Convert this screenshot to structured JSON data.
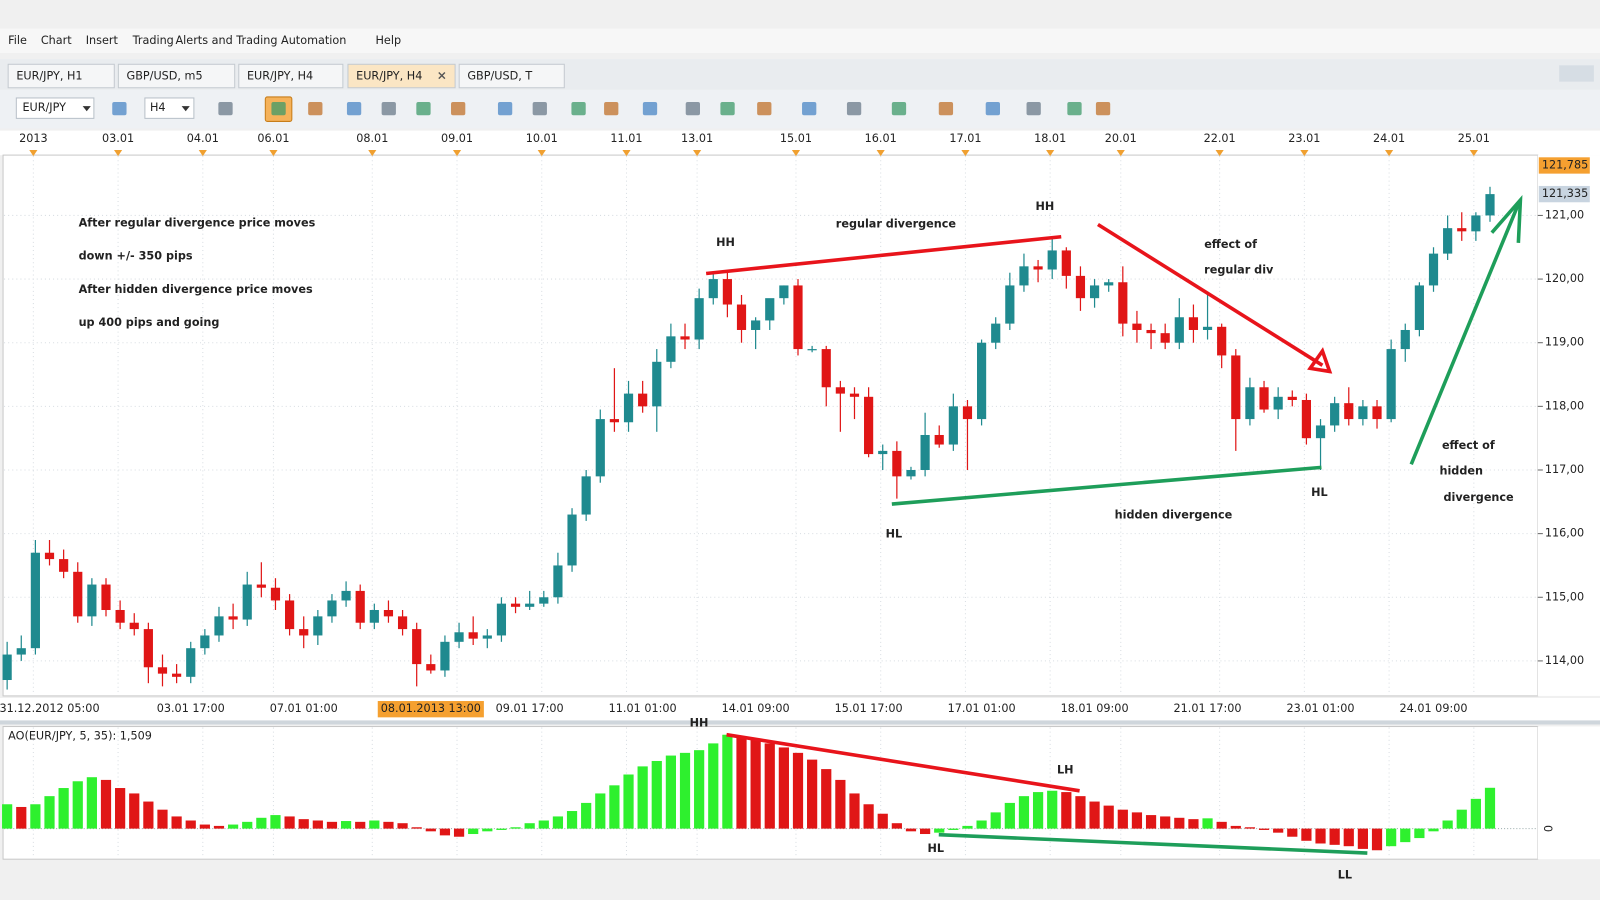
{
  "menu": [
    "File",
    "Chart",
    "Insert",
    "Trading",
    "Alerts and Trading Automation",
    "Help"
  ],
  "tabs": [
    "EUR/JPY, H1",
    "GBP/USD, m5",
    "EUR/JPY, H4",
    "EUR/JPY, H4",
    "GBP/USD, T"
  ],
  "toolbar": {
    "symbol": "EUR/JPY",
    "timeframe": "H4"
  },
  "chart_data": {
    "type": "candlestick",
    "date_ruler": [
      "2013",
      "03.01",
      "04.01",
      "06.01",
      "08.01",
      "09.01",
      "10.01",
      "11.01",
      "13.01",
      "15.01",
      "16.01",
      "17.01",
      "18.01",
      "20.01",
      "22.01",
      "23.01",
      "24.01",
      "25.01"
    ],
    "categories": [
      null,
      null,
      null,
      "31.12.2012 05:00",
      null,
      null,
      null,
      null,
      null,
      null,
      null,
      null,
      null,
      "03.01 17:00",
      null,
      null,
      null,
      null,
      null,
      null,
      null,
      "07.01 01:00",
      null,
      null,
      null,
      null,
      null,
      null,
      null,
      null,
      "08.01.2013 13:00",
      null,
      null,
      null,
      null,
      null,
      null,
      "09.01 17:00",
      null,
      null,
      null,
      null,
      null,
      null,
      null,
      "11.01 01:00",
      null,
      null,
      null,
      null,
      null,
      null,
      null,
      "14.01 09:00",
      null,
      null,
      null,
      null,
      null,
      null,
      null,
      "15.01 17:00",
      null,
      null,
      null,
      null,
      null,
      null,
      null,
      "17.01 01:00",
      null,
      null,
      null,
      null,
      null,
      null,
      null,
      "18.01 09:00",
      null,
      null,
      null,
      null,
      null,
      null,
      null,
      "21.01 17:00",
      null,
      null,
      null,
      null,
      null,
      null,
      null,
      "23.01 01:00",
      null,
      null,
      null,
      null,
      null,
      null,
      null,
      "24.01 09:00",
      null,
      null,
      null,
      null
    ],
    "candles": {
      "open": [
        113.7,
        114.1,
        114.2,
        115.7,
        115.6,
        115.4,
        114.7,
        115.2,
        114.8,
        114.6,
        114.5,
        113.9,
        113.8,
        113.75,
        114.2,
        114.4,
        114.7,
        114.65,
        115.2,
        115.15,
        114.95,
        114.5,
        114.4,
        114.7,
        114.95,
        115.1,
        114.6,
        114.8,
        114.7,
        114.5,
        113.95,
        113.85,
        114.3,
        114.45,
        114.35,
        114.4,
        114.9,
        114.85,
        114.9,
        115.0,
        115.5,
        116.3,
        116.9,
        117.8,
        117.75,
        118.2,
        118.0,
        118.7,
        119.1,
        119.05,
        119.7,
        120.0,
        119.6,
        119.2,
        119.35,
        119.7,
        119.9,
        118.9,
        118.9,
        118.3,
        118.2,
        118.15,
        117.25,
        117.3,
        116.9,
        117.0,
        117.55,
        117.4,
        118.0,
        117.8,
        119.0,
        119.3,
        119.9,
        120.2,
        120.15,
        120.45,
        120.05,
        119.7,
        119.9,
        119.95,
        119.3,
        119.2,
        119.15,
        119.0,
        119.4,
        119.2,
        119.25,
        118.8,
        117.8,
        118.3,
        117.95,
        118.15,
        118.1,
        117.5,
        117.7,
        118.05,
        117.8,
        118.0,
        117.8,
        118.9,
        119.2,
        119.9,
        120.4,
        120.8,
        120.75,
        121.0
      ],
      "high": [
        114.3,
        114.4,
        115.9,
        115.9,
        115.75,
        115.55,
        115.3,
        115.3,
        114.95,
        114.75,
        114.6,
        114.1,
        113.95,
        114.3,
        114.5,
        114.85,
        114.9,
        115.4,
        115.55,
        115.3,
        115.05,
        114.7,
        114.8,
        115.05,
        115.25,
        115.2,
        114.9,
        114.95,
        114.8,
        114.6,
        114.1,
        114.4,
        114.6,
        114.7,
        114.5,
        115.0,
        115.0,
        115.1,
        115.1,
        115.7,
        116.4,
        117.0,
        117.95,
        118.6,
        118.4,
        118.4,
        118.9,
        119.3,
        119.3,
        119.85,
        120.1,
        120.1,
        119.75,
        119.4,
        119.6,
        119.9,
        120.0,
        118.95,
        118.95,
        118.4,
        118.3,
        118.3,
        117.4,
        117.45,
        117.05,
        117.9,
        117.7,
        118.2,
        118.1,
        119.05,
        119.4,
        120.1,
        120.4,
        120.3,
        120.65,
        120.5,
        120.2,
        120.0,
        120.0,
        120.2,
        119.5,
        119.3,
        119.3,
        119.7,
        119.6,
        119.8,
        119.3,
        118.9,
        118.45,
        118.4,
        118.3,
        118.25,
        118.2,
        117.8,
        118.15,
        118.3,
        118.1,
        118.1,
        119.05,
        119.3,
        119.95,
        120.5,
        121.0,
        121.05,
        121.05,
        121.45
      ],
      "low": [
        113.55,
        114.0,
        114.1,
        115.5,
        115.3,
        114.6,
        114.55,
        114.7,
        114.5,
        114.4,
        113.65,
        113.6,
        113.65,
        113.65,
        114.1,
        114.3,
        114.5,
        114.55,
        115.0,
        114.8,
        114.4,
        114.2,
        114.25,
        114.6,
        114.85,
        114.5,
        114.5,
        114.6,
        114.4,
        113.6,
        113.8,
        113.75,
        114.2,
        114.25,
        114.2,
        114.3,
        114.75,
        114.8,
        114.85,
        114.9,
        115.4,
        116.2,
        116.8,
        117.6,
        117.6,
        117.9,
        117.6,
        118.6,
        118.9,
        118.9,
        119.6,
        119.4,
        119.0,
        118.9,
        119.2,
        119.6,
        118.8,
        118.85,
        118.0,
        117.6,
        117.8,
        117.2,
        117.0,
        116.55,
        116.85,
        116.9,
        117.35,
        117.3,
        117.0,
        117.7,
        118.9,
        119.2,
        119.8,
        119.95,
        120.0,
        119.85,
        119.5,
        119.55,
        119.8,
        119.1,
        119.0,
        118.9,
        118.9,
        118.9,
        119.0,
        119.05,
        118.6,
        117.3,
        117.7,
        117.9,
        117.8,
        118.0,
        117.4,
        117.0,
        117.6,
        117.7,
        117.7,
        117.65,
        117.75,
        118.7,
        119.1,
        119.8,
        120.3,
        120.6,
        120.6,
        120.9
      ],
      "close": [
        114.1,
        114.2,
        115.7,
        115.6,
        115.4,
        114.7,
        115.2,
        114.8,
        114.6,
        114.5,
        113.9,
        113.8,
        113.75,
        114.2,
        114.4,
        114.7,
        114.65,
        115.2,
        115.15,
        114.95,
        114.5,
        114.4,
        114.7,
        114.95,
        115.1,
        114.6,
        114.8,
        114.7,
        114.5,
        113.95,
        113.85,
        114.3,
        114.45,
        114.35,
        114.4,
        114.9,
        114.85,
        114.9,
        115.0,
        115.5,
        116.3,
        116.9,
        117.8,
        117.75,
        118.2,
        118.0,
        118.7,
        119.1,
        119.05,
        119.7,
        120.0,
        119.6,
        119.2,
        119.35,
        119.7,
        119.9,
        118.9,
        118.9,
        118.3,
        118.2,
        118.15,
        117.25,
        117.3,
        116.9,
        117.0,
        117.55,
        117.4,
        118.0,
        117.8,
        119.0,
        119.3,
        119.9,
        120.2,
        120.15,
        120.45,
        120.05,
        119.7,
        119.9,
        119.95,
        119.3,
        119.2,
        119.15,
        119.0,
        119.4,
        119.2,
        119.25,
        118.8,
        117.8,
        118.3,
        117.95,
        118.15,
        118.1,
        117.5,
        117.7,
        118.05,
        117.8,
        118.0,
        117.8,
        118.9,
        119.2,
        119.9,
        120.4,
        120.8,
        120.75,
        121.0,
        121.335
      ]
    },
    "up_color": "#1f8a8f",
    "down_color": "#e01616",
    "ylim": [
      113.45,
      121.98
    ],
    "yticks": [
      {
        "value": 114,
        "label": "114,00"
      },
      {
        "value": 115,
        "label": "115,00"
      },
      {
        "value": 116,
        "label": "116,00"
      },
      {
        "value": 117,
        "label": "117,00"
      },
      {
        "value": 118,
        "label": "118,00"
      },
      {
        "value": 119,
        "label": "119,00"
      },
      {
        "value": 120,
        "label": "120,00"
      },
      {
        "value": 121,
        "label": "121,00"
      }
    ],
    "price_tags": [
      {
        "value": 121.785,
        "label": "121,785",
        "color": "#f5a030"
      },
      {
        "value": 121.335,
        "label": "121,335",
        "color": "#c8d4e0"
      }
    ],
    "grid": true,
    "headline": [
      {
        "text": "After regular divergence price moves",
        "color": "#e8141b"
      },
      {
        "text": "down +/- 350 pips",
        "color": "#e8141b"
      },
      {
        "text": "After hidden divergence price moves",
        "color": "#1e9e5a"
      },
      {
        "text": "up 400 pips and going",
        "color": "#1e9e5a"
      }
    ],
    "annotations": [
      {
        "text": "HH",
        "color": "#5a5a6a"
      },
      {
        "text": "regular divergence",
        "color": "#e8141b"
      },
      {
        "text": "HH",
        "color": "#1e9e5a"
      },
      {
        "text": "effect of",
        "color": "#e8141b"
      },
      {
        "text": "regular div",
        "color": "#e8141b"
      },
      {
        "text": "HL",
        "color": "#5a5a6a"
      },
      {
        "text": "hidden divergence",
        "color": "#1e9e5a"
      },
      {
        "text": "HL",
        "color": "#1e9e5a"
      },
      {
        "text": "effect of",
        "color": "#1e9e5a"
      },
      {
        "text": "hidden",
        "color": "#1e9e5a"
      },
      {
        "text": "divergence",
        "color": "#1e9e5a"
      },
      {
        "text": "HH",
        "color": "#5a5a6a"
      },
      {
        "text": "LH",
        "color": "#e8141b"
      },
      {
        "text": "HL",
        "color": "#5a5a6a"
      },
      {
        "text": "LL",
        "color": "#e8141b"
      }
    ],
    "ao": {
      "label": "AO(EUR/JPY, 5, 35): 1,509",
      "values": [
        0.9,
        0.8,
        0.9,
        1.2,
        1.5,
        1.75,
        1.9,
        1.8,
        1.5,
        1.3,
        1.0,
        0.7,
        0.45,
        0.3,
        0.15,
        0.1,
        0.15,
        0.25,
        0.4,
        0.5,
        0.45,
        0.35,
        0.3,
        0.25,
        0.28,
        0.25,
        0.3,
        0.25,
        0.2,
        0.05,
        -0.1,
        -0.25,
        -0.3,
        -0.2,
        -0.1,
        -0.05,
        0.05,
        0.2,
        0.3,
        0.45,
        0.65,
        0.95,
        1.3,
        1.6,
        2.0,
        2.3,
        2.5,
        2.7,
        2.8,
        2.9,
        3.15,
        3.47,
        3.4,
        3.3,
        3.15,
        3.0,
        2.8,
        2.55,
        2.2,
        1.8,
        1.3,
        0.9,
        0.55,
        0.2,
        -0.1,
        -0.2,
        -0.15,
        -0.05,
        0.1,
        0.3,
        0.6,
        0.95,
        1.2,
        1.35,
        1.4,
        1.35,
        1.2,
        1.0,
        0.85,
        0.7,
        0.6,
        0.5,
        0.45,
        0.4,
        0.35,
        0.38,
        0.25,
        0.1,
        0.05,
        -0.05,
        -0.15,
        -0.3,
        -0.45,
        -0.55,
        -0.6,
        -0.65,
        -0.75,
        -0.8,
        -0.65,
        -0.5,
        -0.35,
        -0.1,
        0.3,
        0.7,
        1.1,
        1.509
      ],
      "up_color": "#2ef02e",
      "down_color": "#e01616",
      "ylim": [
        -1.13,
        3.66
      ],
      "yticks": [
        0
      ]
    }
  }
}
